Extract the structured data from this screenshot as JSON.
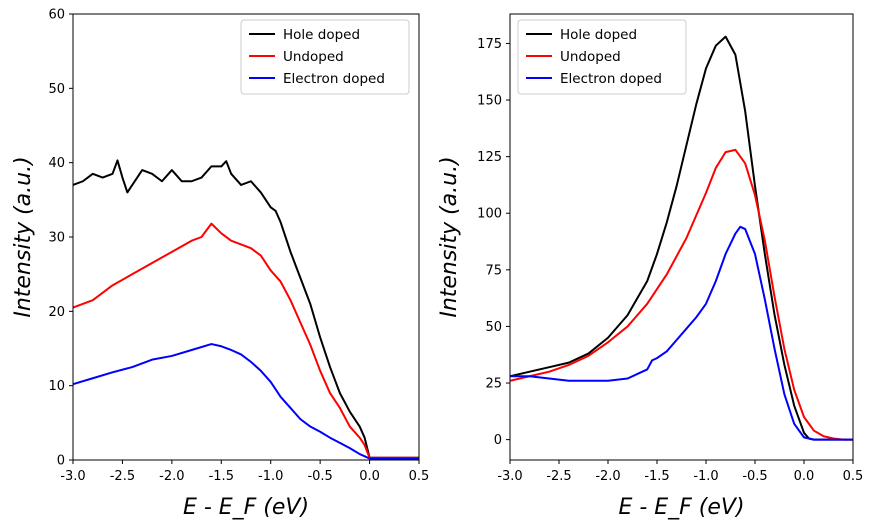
{
  "colors": {
    "hole": "#000000",
    "undoped": "#ff0000",
    "electron": "#0000ff"
  },
  "chart_data": [
    {
      "type": "line",
      "xlabel": "E - E_F  (eV)",
      "ylabel": "Intensity  (a.u.)",
      "xlim": [
        -3.0,
        0.5
      ],
      "ylim": [
        0,
        60
      ],
      "xticks": [
        "-3.0",
        "-2.5",
        "-2.0",
        "-1.5",
        "-1.0",
        "-0.5",
        "0.0",
        "0.5"
      ],
      "yticks": [
        "0",
        "10",
        "20",
        "30",
        "40",
        "50",
        "60"
      ],
      "legend": "top-right",
      "series": [
        {
          "name": "Hole doped",
          "color": "#000000",
          "x": [
            -3.0,
            -2.9,
            -2.8,
            -2.7,
            -2.6,
            -2.55,
            -2.5,
            -2.45,
            -2.4,
            -2.3,
            -2.2,
            -2.1,
            -2.0,
            -1.9,
            -1.8,
            -1.7,
            -1.6,
            -1.5,
            -1.45,
            -1.4,
            -1.3,
            -1.2,
            -1.1,
            -1.0,
            -0.95,
            -0.9,
            -0.85,
            -0.8,
            -0.7,
            -0.6,
            -0.5,
            -0.4,
            -0.3,
            -0.2,
            -0.1,
            -0.05,
            0.0,
            0.1,
            0.2,
            0.3,
            0.4,
            0.5
          ],
          "y": [
            37,
            37.5,
            38.5,
            38,
            38.5,
            40.3,
            38,
            36,
            37,
            39,
            38.5,
            37.5,
            39,
            37.5,
            37.5,
            38,
            39.5,
            39.5,
            40.2,
            38.5,
            37,
            37.5,
            36,
            34,
            33.5,
            32,
            30,
            28,
            24.5,
            21,
            16.5,
            12.5,
            9,
            6.5,
            4.5,
            3,
            0.3,
            0.3,
            0.3,
            0.3,
            0.3,
            0.3
          ]
        },
        {
          "name": "Undoped",
          "color": "#ff0000",
          "x": [
            -3.0,
            -2.8,
            -2.6,
            -2.4,
            -2.2,
            -2.0,
            -1.8,
            -1.7,
            -1.6,
            -1.5,
            -1.4,
            -1.3,
            -1.2,
            -1.1,
            -1.0,
            -0.9,
            -0.8,
            -0.7,
            -0.6,
            -0.5,
            -0.4,
            -0.3,
            -0.2,
            -0.1,
            -0.05,
            0.0,
            0.1,
            0.2,
            0.3,
            0.4,
            0.5
          ],
          "y": [
            20.5,
            21.5,
            23.5,
            25,
            26.5,
            28,
            29.5,
            30,
            31.8,
            30.5,
            29.5,
            29,
            28.5,
            27.5,
            25.5,
            24,
            21.5,
            18.5,
            15.5,
            12,
            9,
            7,
            4.5,
            3,
            2,
            0.3,
            0.3,
            0.3,
            0.3,
            0.3,
            0.3
          ]
        },
        {
          "name": "Electron doped",
          "color": "#0000ff",
          "x": [
            -3.0,
            -2.8,
            -2.6,
            -2.4,
            -2.2,
            -2.0,
            -1.8,
            -1.6,
            -1.5,
            -1.4,
            -1.3,
            -1.2,
            -1.1,
            -1.0,
            -0.9,
            -0.8,
            -0.7,
            -0.6,
            -0.5,
            -0.4,
            -0.3,
            -0.2,
            -0.1,
            0.0,
            0.1,
            0.2,
            0.3,
            0.4,
            0.5
          ],
          "y": [
            10.2,
            11,
            11.8,
            12.5,
            13.5,
            14,
            14.8,
            15.6,
            15.3,
            14.8,
            14.2,
            13.2,
            12,
            10.5,
            8.5,
            7,
            5.5,
            4.5,
            3.8,
            3,
            2.3,
            1.6,
            0.8,
            0.2,
            0.2,
            0.2,
            0.2,
            0.2,
            0.2
          ]
        }
      ]
    },
    {
      "type": "line",
      "xlabel": "E - E_F  (eV)",
      "ylabel": "Intensity  (a.u.)",
      "xlim": [
        -3.0,
        0.5
      ],
      "ylim": [
        -9,
        188
      ],
      "xticks": [
        "-3.0",
        "-2.5",
        "-2.0",
        "-1.5",
        "-1.0",
        "-0.5",
        "0.0",
        "0.5"
      ],
      "yticks": [
        "0",
        "25",
        "50",
        "75",
        "100",
        "125",
        "150",
        "175"
      ],
      "legend": "top-left",
      "series": [
        {
          "name": "Hole doped",
          "color": "#000000",
          "x": [
            -3.0,
            -2.8,
            -2.6,
            -2.4,
            -2.2,
            -2.0,
            -1.8,
            -1.6,
            -1.5,
            -1.4,
            -1.3,
            -1.2,
            -1.1,
            -1.0,
            -0.9,
            -0.8,
            -0.7,
            -0.6,
            -0.5,
            -0.4,
            -0.3,
            -0.2,
            -0.1,
            0.0,
            0.05,
            0.1,
            0.2,
            0.3,
            0.4,
            0.5
          ],
          "y": [
            28,
            30,
            32,
            34,
            38,
            45,
            55,
            70,
            82,
            96,
            112,
            130,
            148,
            164,
            174,
            178,
            170,
            145,
            112,
            82,
            55,
            33,
            15,
            3,
            0.5,
            0,
            0,
            0,
            0,
            0
          ]
        },
        {
          "name": "Undoped",
          "color": "#ff0000",
          "x": [
            -3.0,
            -2.8,
            -2.6,
            -2.4,
            -2.2,
            -2.0,
            -1.8,
            -1.6,
            -1.4,
            -1.2,
            -1.0,
            -0.9,
            -0.8,
            -0.7,
            -0.6,
            -0.5,
            -0.4,
            -0.3,
            -0.2,
            -0.1,
            0.0,
            0.1,
            0.2,
            0.3,
            0.4,
            0.5
          ],
          "y": [
            26,
            28,
            30,
            33,
            37,
            43,
            50,
            60,
            73,
            89,
            109,
            120,
            127,
            128,
            122,
            108,
            88,
            63,
            40,
            22,
            10,
            4,
            1.5,
            0.5,
            0,
            0
          ]
        },
        {
          "name": "Electron doped",
          "color": "#0000ff",
          "x": [
            -3.0,
            -2.8,
            -2.6,
            -2.4,
            -2.2,
            -2.0,
            -1.8,
            -1.7,
            -1.6,
            -1.55,
            -1.5,
            -1.4,
            -1.3,
            -1.2,
            -1.1,
            -1.0,
            -0.9,
            -0.8,
            -0.7,
            -0.65,
            -0.6,
            -0.5,
            -0.4,
            -0.3,
            -0.2,
            -0.1,
            0.0,
            0.1,
            0.2,
            0.3,
            0.4,
            0.5
          ],
          "y": [
            28,
            28,
            27,
            26,
            26,
            26,
            27,
            29,
            31,
            35,
            36,
            39,
            44,
            49,
            54,
            60,
            70,
            82,
            91,
            94,
            93,
            82,
            62,
            40,
            20,
            7,
            1,
            0,
            0,
            0,
            0,
            0
          ]
        }
      ]
    }
  ]
}
